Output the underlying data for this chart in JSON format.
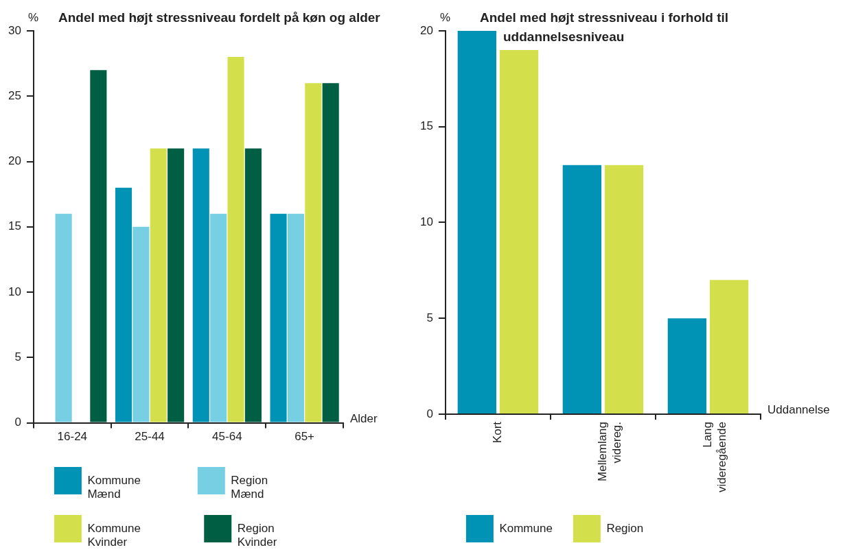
{
  "chart_data": [
    {
      "type": "bar",
      "title": "Andel med højt stressniveau fordelt på køn og alder",
      "ylabel": "%",
      "xlabel": "Alder",
      "categories": [
        "16-24",
        "25-44",
        "45-64",
        "65+"
      ],
      "series": [
        {
          "name": "Kommune Mænd",
          "color": "#0093b5",
          "values": [
            0,
            18,
            21,
            16
          ]
        },
        {
          "name": "Region Mænd",
          "color": "#76cfe3",
          "values": [
            16,
            15,
            16,
            16
          ]
        },
        {
          "name": "Kommune Kvinder",
          "color": "#d4e04b",
          "values": [
            0,
            21,
            28,
            26
          ]
        },
        {
          "name": "Region Kvinder",
          "color": "#005e42",
          "values": [
            27,
            21,
            21,
            26
          ]
        }
      ],
      "ylim": [
        0,
        30
      ],
      "yticks": [
        0,
        5,
        10,
        15,
        20,
        25,
        30
      ],
      "legend": "bottom"
    },
    {
      "type": "bar",
      "title": "Andel med højt stressniveau i forhold til uddannelsesniveau",
      "ylabel": "%",
      "xlabel": "Uddannelse",
      "categories": [
        "Kort",
        "Mellemlang videreg.",
        "Lang videregående"
      ],
      "series": [
        {
          "name": "Kommune",
          "color": "#0093b5",
          "values": [
            20,
            13,
            5
          ]
        },
        {
          "name": "Region",
          "color": "#d4e04b",
          "values": [
            19,
            13,
            7
          ]
        }
      ],
      "ylim": [
        0,
        20
      ],
      "yticks": [
        0,
        5,
        10,
        15,
        20
      ],
      "legend": "bottom"
    }
  ]
}
